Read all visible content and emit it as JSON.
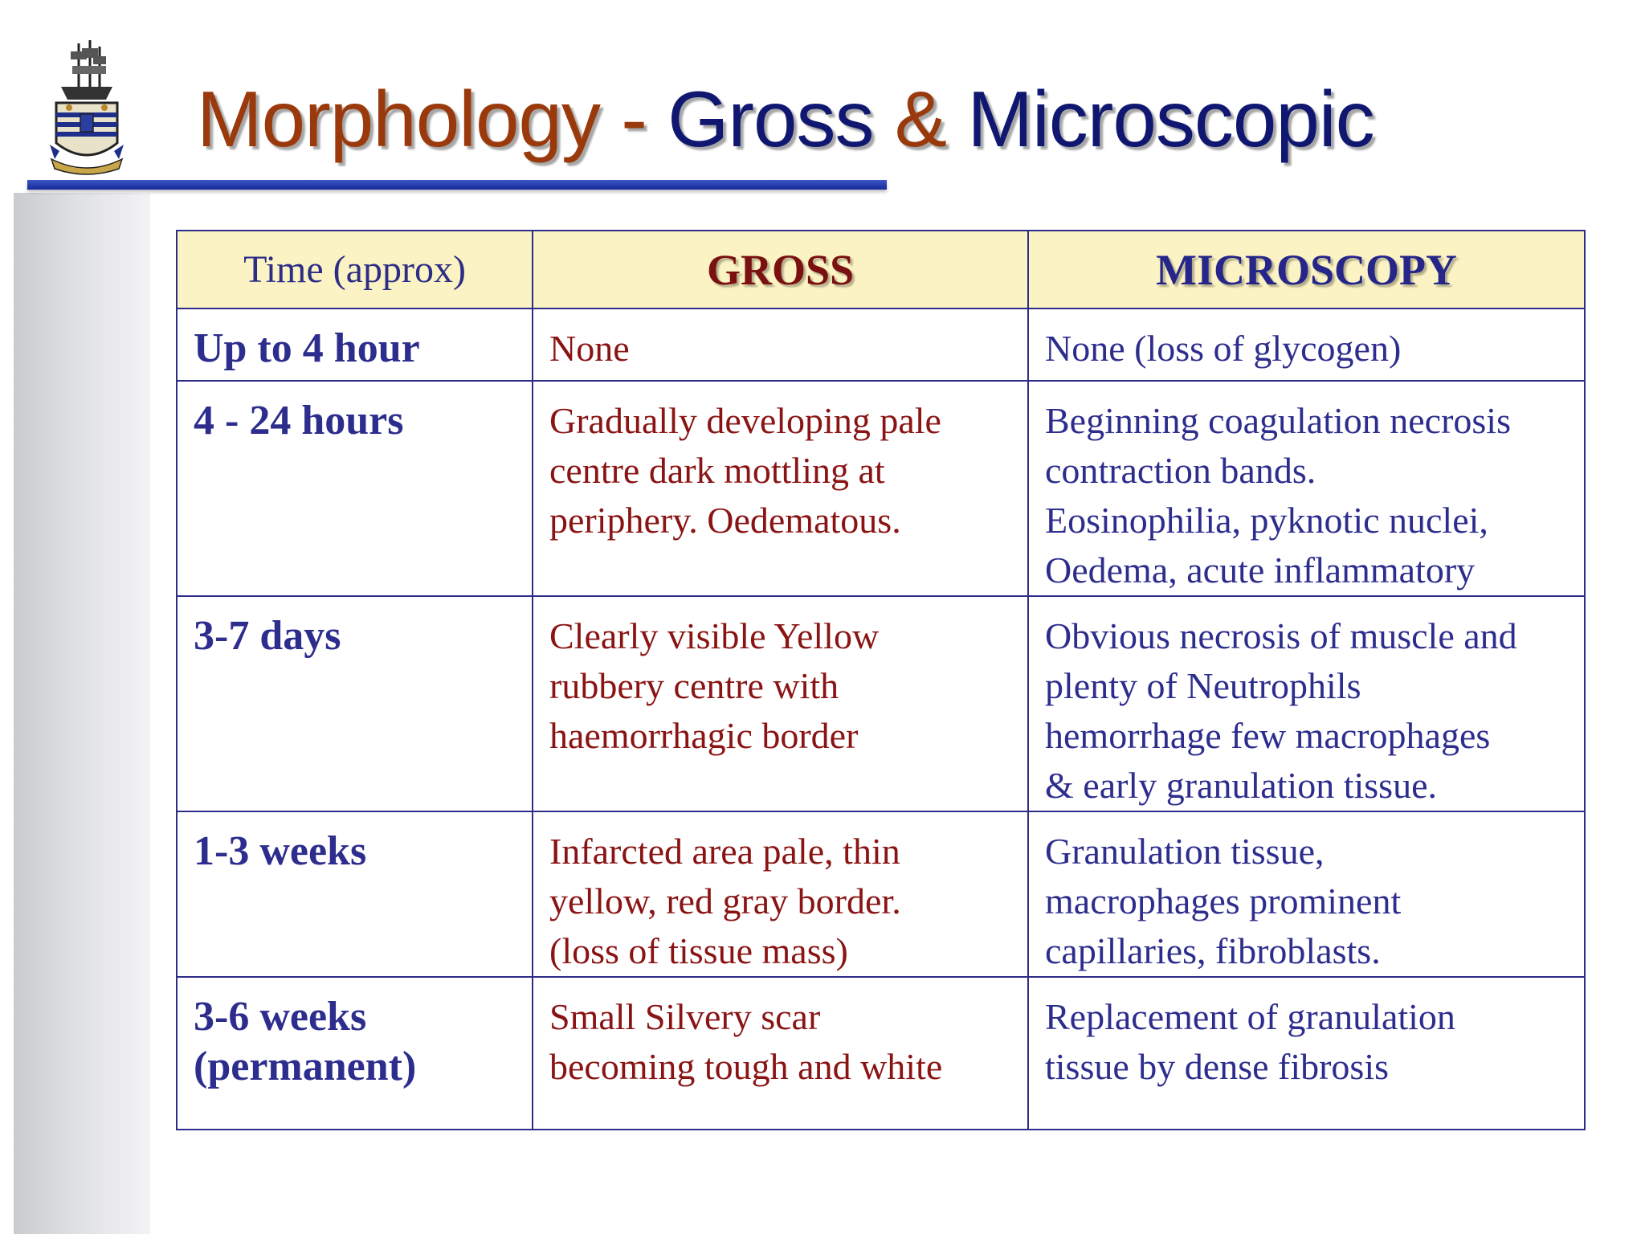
{
  "title": {
    "part_a": "Morphology - ",
    "part_b": "Gross ",
    "part_c": "& ",
    "part_d": "Microscopic"
  },
  "table": {
    "headers": [
      "Time (approx)",
      "GROSS",
      "MICROSCOPY"
    ],
    "rows": [
      {
        "time": [
          "Up to 4 hour"
        ],
        "gross": [
          "None"
        ],
        "micro": [
          "None (loss of glycogen)"
        ]
      },
      {
        "time": [
          "4 - 24 hours"
        ],
        "gross": [
          "Gradually developing pale",
          "centre dark mottling at",
          "periphery. Oedematous."
        ],
        "micro": [
          "Beginning coagulation necrosis",
          "contraction bands.",
          "Eosinophilia, pyknotic nuclei,",
          "Oedema, acute inflammatory"
        ]
      },
      {
        "time": [
          "3-7 days"
        ],
        "gross": [
          "Clearly visible Yellow",
          "rubbery centre with",
          "haemorrhagic border"
        ],
        "micro": [
          "Obvious necrosis of muscle and",
          "plenty of Neutrophils",
          "hemorrhage  few macrophages",
          "& early granulation tissue."
        ]
      },
      {
        "time": [
          "1-3 weeks"
        ],
        "gross": [
          "Infarcted area pale, thin",
          "yellow, red gray border.",
          "(loss of tissue mass)"
        ],
        "micro": [
          "Granulation tissue,",
          "macrophages prominent",
          "capillaries, fibroblasts."
        ]
      },
      {
        "time": [
          "3-6 weeks",
          "(permanent)"
        ],
        "gross": [
          "Small Silvery scar",
          "becoming tough and white"
        ],
        "micro": [
          "Replacement of granulation",
          "tissue by dense fibrosis"
        ]
      }
    ]
  },
  "colors": {
    "title_brown": "#9a3a0c",
    "title_navy": "#0f1770",
    "header_bg": "#fbf3c3",
    "gross_text": "#8a1414",
    "micro_text": "#2d2d8e"
  }
}
